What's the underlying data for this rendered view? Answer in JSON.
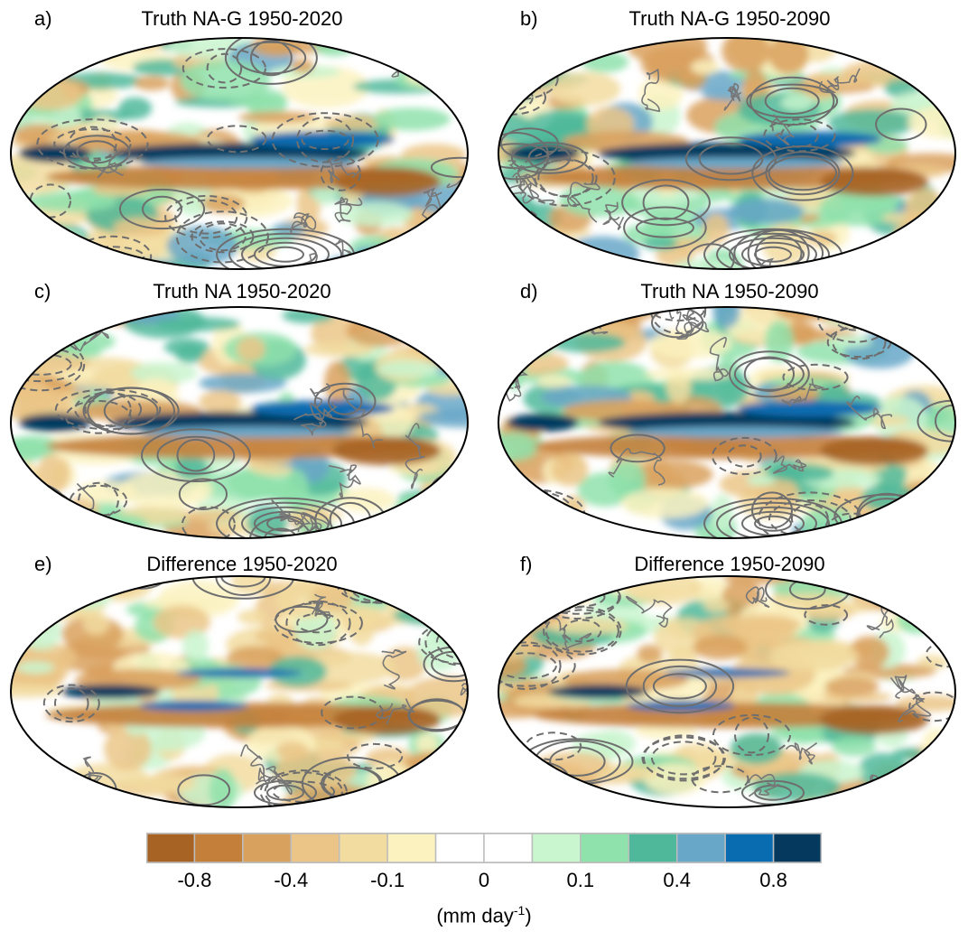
{
  "panels": [
    {
      "letter": "a)",
      "title": "Truth NA-G 1950-2020",
      "icon": "precipitation-trend-map"
    },
    {
      "letter": "b)",
      "title": "Truth NA-G 1950-2090",
      "icon": "precipitation-trend-map"
    },
    {
      "letter": "c)",
      "title": "Truth NA 1950-2020",
      "icon": "precipitation-trend-map"
    },
    {
      "letter": "d)",
      "title": "Truth NA 1950-2090",
      "icon": "precipitation-trend-map"
    },
    {
      "letter": "e)",
      "title": "Difference 1950-2020",
      "icon": "precipitation-difference-map"
    },
    {
      "letter": "f)",
      "title": "Difference 1950-2090",
      "icon": "precipitation-difference-map"
    }
  ],
  "colorbar": {
    "colors": [
      "#a66324",
      "#c4803b",
      "#d9a15e",
      "#ebc587",
      "#f2dca0",
      "#fbf2c0",
      "#ffffff",
      "#ffffff",
      "#c9f5cf",
      "#8fe2ab",
      "#4fb89a",
      "#69a7c8",
      "#0a6cb0",
      "#053a5e"
    ],
    "labels": [
      "-0.8",
      "-0.4",
      "-0.1",
      "0",
      "0.1",
      "0.4",
      "0.8"
    ],
    "units_main": "(mm day",
    "units_sup": "-1",
    "units_end": ")"
  }
}
